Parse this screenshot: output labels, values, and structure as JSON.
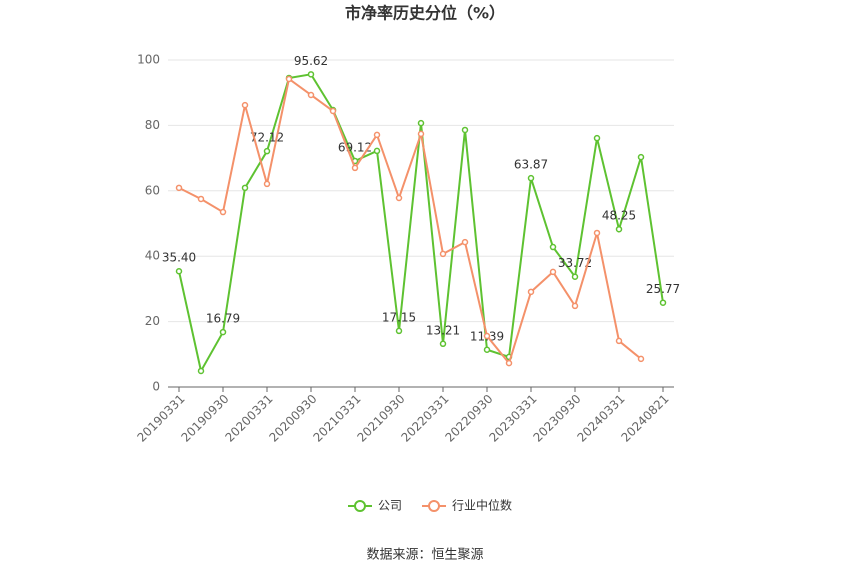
{
  "chart_data": {
    "type": "line",
    "title": "市净率历史分位（%）",
    "categories": [
      "20190331",
      null,
      "20190930",
      null,
      "20200331",
      null,
      "20200930",
      null,
      "20210331",
      null,
      "20210930",
      null,
      "20220331",
      null,
      "20220930",
      null,
      "20230331",
      null,
      "20230930",
      null,
      "20240331",
      null,
      "20240821"
    ],
    "series": [
      {
        "name": "公司",
        "color": "#5ec231",
        "values": [
          35.4,
          4.9,
          16.79,
          60.9,
          72.12,
          94.5,
          95.62,
          84.7,
          69.12,
          72.2,
          17.15,
          80.7,
          13.21,
          78.6,
          11.39,
          9.2,
          63.87,
          42.8,
          33.72,
          76.1,
          48.25,
          70.3,
          25.77
        ],
        "value_labels": [
          "35.40",
          null,
          "16.79",
          null,
          "72.12",
          null,
          "95.62",
          null,
          "69.12",
          null,
          "17.15",
          null,
          "13.21",
          null,
          "11.39",
          null,
          "63.87",
          null,
          "33.72",
          null,
          "48.25",
          null,
          "25.77"
        ]
      },
      {
        "name": "行业中位数",
        "color": "#f4916a",
        "values": [
          60.9,
          57.5,
          53.5,
          86.2,
          62.1,
          94.2,
          89.3,
          84.4,
          67.0,
          77.1,
          57.8,
          77.4,
          40.7,
          44.3,
          15.6,
          7.3,
          29.1,
          35.2,
          24.8,
          47.1,
          14.1,
          8.6,
          null
        ]
      }
    ],
    "ylim": [
      0,
      100
    ],
    "yticks": [
      0,
      20,
      40,
      60,
      80,
      100
    ],
    "grid": true,
    "legend": "bottom",
    "source": "数据来源：恒生聚源"
  }
}
